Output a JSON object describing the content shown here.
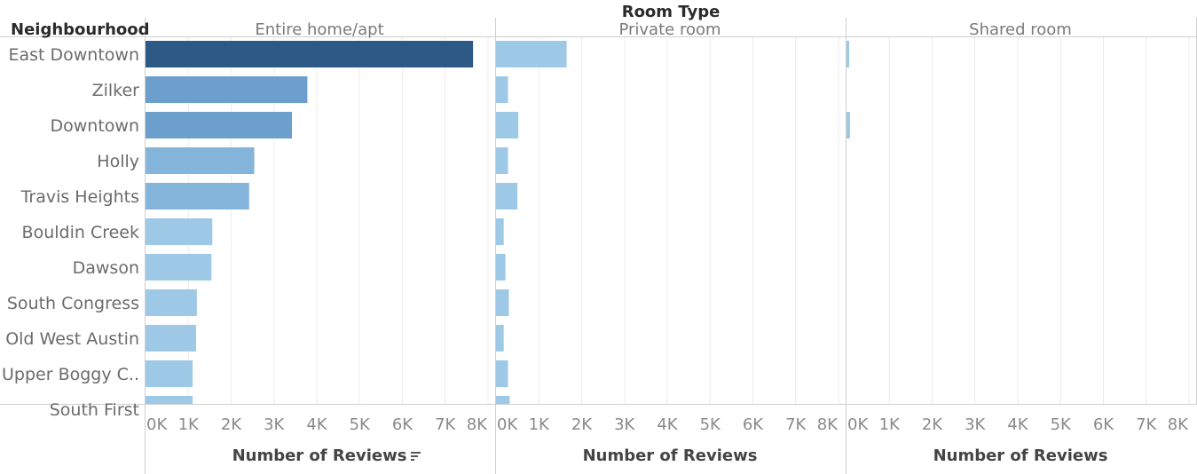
{
  "header": {
    "column_title": "Room Type",
    "row_title": "Neighbourhood",
    "sort_icon": "sort-descending-icon"
  },
  "colors": {
    "darkest": "#2c5985",
    "dark": "#6c9fcb",
    "medium": "#85b4da",
    "light": "#9ec9e6",
    "grid": "#ececec",
    "divider": "#cfcfcf"
  },
  "chart_data": {
    "type": "bar",
    "orientation": "horizontal",
    "row_labels": [
      "East Downtown",
      "Zilker",
      "Downtown",
      "Holly",
      "Travis Heights",
      "Bouldin Creek",
      "Dawson",
      "South Congress",
      "Old West Austin",
      "Upper Boggy C..",
      "South First"
    ],
    "panels": [
      {
        "name": "Entire home/apt",
        "xlabel": "Number of Reviews",
        "sorted": true,
        "values": [
          7650,
          3780,
          3420,
          2540,
          2420,
          1560,
          1540,
          1200,
          1180,
          1100,
          1100
        ]
      },
      {
        "name": "Private room",
        "xlabel": "Number of Reviews",
        "sorted": false,
        "values": [
          1650,
          280,
          520,
          280,
          500,
          180,
          220,
          300,
          180,
          280,
          320
        ]
      },
      {
        "name": "Shared room",
        "xlabel": "Number of Reviews",
        "sorted": false,
        "values": [
          60,
          0,
          80,
          0,
          0,
          0,
          0,
          0,
          0,
          0,
          0
        ]
      }
    ],
    "xlim": [
      0,
      8000
    ],
    "x_ticks": [
      0,
      1000,
      2000,
      3000,
      4000,
      5000,
      6000,
      7000,
      8000
    ],
    "x_tick_labels": [
      "0K",
      "1K",
      "2K",
      "3K",
      "4K",
      "5K",
      "6K",
      "7K",
      "8K"
    ],
    "color_scale": "sequential-blue",
    "grid": true
  }
}
